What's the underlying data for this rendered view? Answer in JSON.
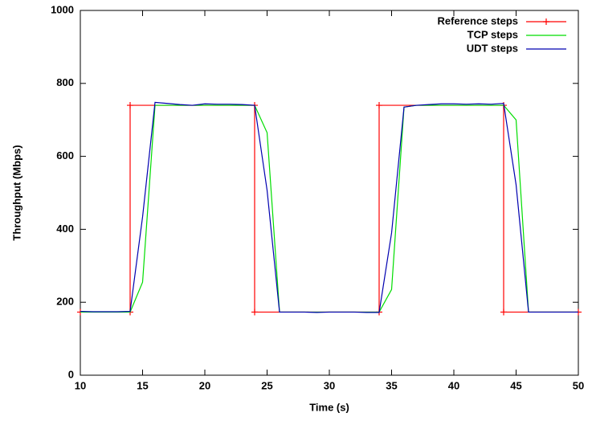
{
  "chart_data": {
    "type": "line",
    "xlabel": "Time (s)",
    "ylabel": "Throughput (Mbps)",
    "xlim": [
      10,
      50
    ],
    "xticks": [
      10,
      15,
      20,
      25,
      30,
      35,
      40,
      45,
      50
    ],
    "ylim": [
      0,
      1000
    ],
    "yticks": [
      0,
      200,
      400,
      600,
      800,
      1000
    ],
    "grid": false,
    "legend": "top-right",
    "series": [
      {
        "name": "Reference steps",
        "color": "#ff0000",
        "marker": "plus",
        "x": [
          10,
          14,
          14,
          24,
          24,
          34,
          34,
          44,
          44,
          50
        ],
        "values": [
          173,
          173,
          740,
          740,
          173,
          173,
          740,
          740,
          173,
          173
        ]
      },
      {
        "name": "TCP steps",
        "color": "#00dd00",
        "x": [
          10,
          11,
          12,
          13,
          14,
          15,
          16,
          17,
          18,
          19,
          20,
          21,
          22,
          23,
          24,
          25,
          26,
          27,
          28,
          29,
          30,
          31,
          32,
          33,
          34,
          35,
          36,
          37,
          38,
          39,
          40,
          41,
          42,
          43,
          44,
          45,
          46,
          47,
          48,
          49,
          50
        ],
        "values": [
          173,
          173,
          173,
          173,
          173,
          255,
          740,
          740,
          740,
          740,
          740,
          740,
          740,
          740,
          740,
          665,
          173,
          173,
          173,
          173,
          173,
          173,
          173,
          173,
          173,
          235,
          735,
          740,
          740,
          740,
          740,
          740,
          740,
          740,
          740,
          700,
          173,
          173,
          173,
          173,
          173
        ]
      },
      {
        "name": "UDT steps",
        "color": "#0000b0",
        "x": [
          10,
          11,
          12,
          13,
          14,
          15,
          16,
          17,
          18,
          19,
          20,
          21,
          22,
          23,
          24,
          25,
          26,
          27,
          28,
          29,
          30,
          31,
          32,
          33,
          34,
          35,
          36,
          37,
          38,
          39,
          40,
          41,
          42,
          43,
          44,
          45,
          46,
          47,
          48,
          49,
          50
        ],
        "values": [
          175,
          174,
          174,
          174,
          175,
          434,
          748,
          745,
          742,
          740,
          744,
          743,
          743,
          742,
          740,
          507,
          173,
          173,
          173,
          172,
          173,
          173,
          173,
          172,
          172,
          390,
          735,
          740,
          742,
          744,
          744,
          743,
          744,
          743,
          745,
          522,
          173,
          173,
          173,
          173,
          173
        ]
      }
    ]
  }
}
